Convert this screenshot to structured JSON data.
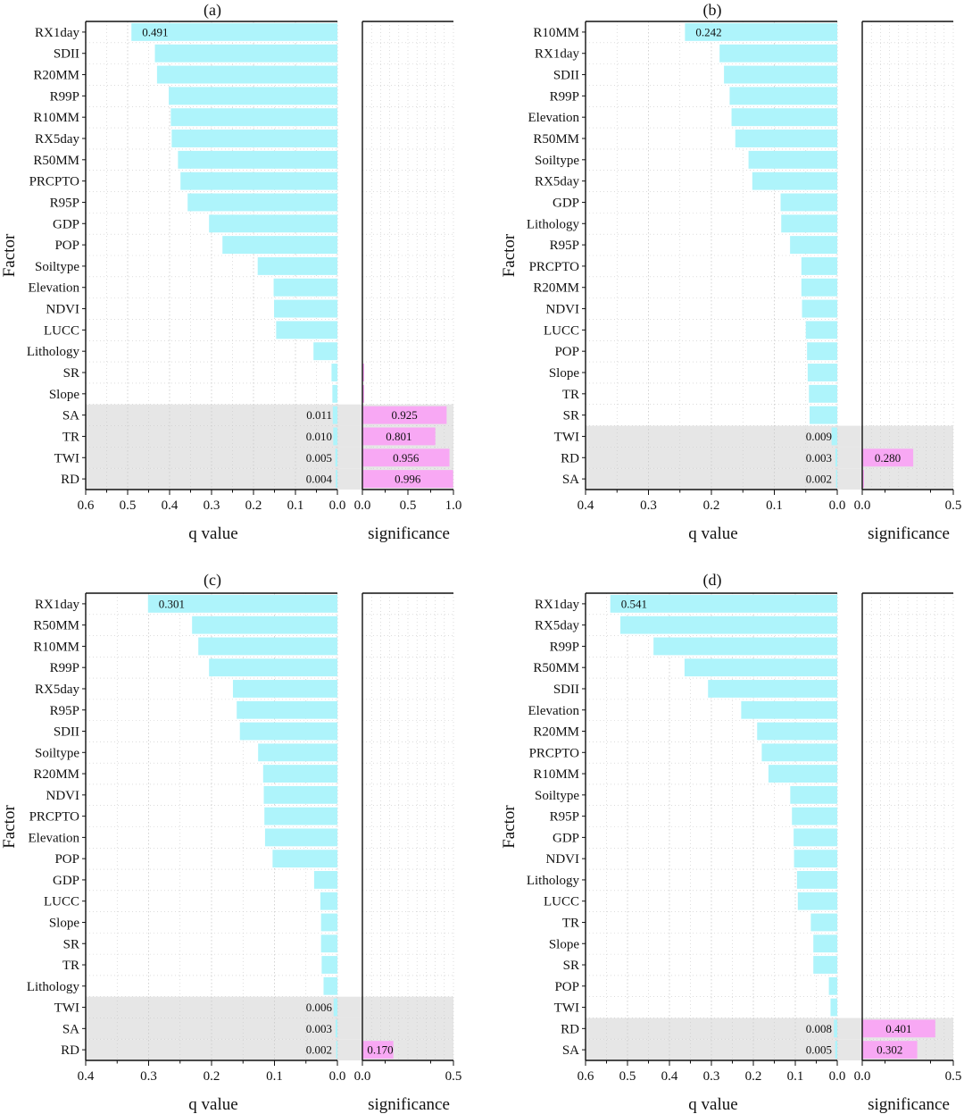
{
  "colors": {
    "bar": "#aef4fb",
    "sigBar": "#f8a8f4",
    "qLabel": "#e0218a",
    "sigLabel": "#2a9d2a",
    "shade": "#e6e6e6",
    "grid": "#c8c8c8"
  },
  "chart_data": [
    {
      "type": "bar",
      "title": "(a)",
      "ylabel": "Factor",
      "xlabel": "q value",
      "sig_xlabel": "significance",
      "xlim": [
        0.6,
        0.0
      ],
      "xticks": [
        0.6,
        0.5,
        0.4,
        0.3,
        0.2,
        0.1,
        0.0
      ],
      "sig_xlim": [
        0,
        1.0
      ],
      "sig_xticks": [
        0.0,
        0.5,
        1.0
      ],
      "categories": [
        "RX1day",
        "SDII",
        "R20MM",
        "R99P",
        "R10MM",
        "RX5day",
        "R50MM",
        "PRCPTO",
        "R95P",
        "GDP",
        "POP",
        "Soiltype",
        "Elevation",
        "NDVI",
        "LUCC",
        "Lithology",
        "SR",
        "Slope",
        "SA",
        "TR",
        "TWI",
        "RD"
      ],
      "q_values": [
        0.491,
        0.435,
        0.43,
        0.402,
        0.397,
        0.395,
        0.38,
        0.374,
        0.357,
        0.306,
        0.274,
        0.19,
        0.152,
        0.151,
        0.146,
        0.057,
        0.014,
        0.012,
        0.011,
        0.01,
        0.005,
        0.004
      ],
      "significance": [
        0,
        0,
        0,
        0,
        0,
        0,
        0,
        0,
        0,
        0,
        0,
        0,
        0,
        0,
        0,
        0,
        0.02,
        0.02,
        0.925,
        0.801,
        0.956,
        0.996
      ],
      "q_value_labels": {
        "RX1day": "0.491",
        "SA": "0.011",
        "TR": "0.010",
        "TWI": "0.005",
        "RD": "0.004"
      },
      "sig_value_labels": {
        "SA": "0.925",
        "TR": "0.801",
        "TWI": "0.956",
        "RD": "0.996"
      },
      "shaded": [
        "SA",
        "TR",
        "TWI",
        "RD"
      ]
    },
    {
      "type": "bar",
      "title": "(b)",
      "ylabel": "Factor",
      "xlabel": "q value",
      "sig_xlabel": "significance",
      "xlim": [
        0.4,
        0.0
      ],
      "xticks": [
        0.4,
        0.3,
        0.2,
        0.1,
        0.0
      ],
      "sig_xlim": [
        0,
        0.5
      ],
      "sig_xticks": [
        0.0,
        0.5
      ],
      "categories": [
        "R10MM",
        "RX1day",
        "SDII",
        "R99P",
        "Elevation",
        "R50MM",
        "Soiltype",
        "RX5day",
        "GDP",
        "Lithology",
        "R95P",
        "PRCPTO",
        "R20MM",
        "NDVI",
        "LUCC",
        "POP",
        "Slope",
        "TR",
        "SR",
        "TWI",
        "RD",
        "SA"
      ],
      "q_values": [
        0.242,
        0.187,
        0.18,
        0.171,
        0.168,
        0.162,
        0.141,
        0.135,
        0.09,
        0.089,
        0.075,
        0.057,
        0.057,
        0.056,
        0.05,
        0.048,
        0.047,
        0.045,
        0.044,
        0.009,
        0.003,
        0.002
      ],
      "significance": [
        0,
        0,
        0,
        0,
        0,
        0,
        0,
        0,
        0,
        0,
        0,
        0,
        0,
        0,
        0,
        0,
        0,
        0,
        0,
        0,
        0.28,
        0.003
      ],
      "q_value_labels": {
        "R10MM": "0.242",
        "TWI": "0.009",
        "RD": "0.003",
        "SA": "0.002"
      },
      "sig_value_labels": {
        "RD": "0.280"
      },
      "shaded": [
        "TWI",
        "RD",
        "SA"
      ]
    },
    {
      "type": "bar",
      "title": "(c)",
      "ylabel": "Factor",
      "xlabel": "q value",
      "sig_xlabel": "significance",
      "xlim": [
        0.4,
        0.0
      ],
      "xticks": [
        0.4,
        0.3,
        0.2,
        0.1,
        0.0
      ],
      "sig_xlim": [
        0,
        0.5
      ],
      "sig_xticks": [
        0.0,
        0.5
      ],
      "categories": [
        "RX1day",
        "R50MM",
        "R10MM",
        "R99P",
        "RX5day",
        "R95P",
        "SDII",
        "Soiltype",
        "R20MM",
        "NDVI",
        "PRCPTO",
        "Elevation",
        "POP",
        "GDP",
        "LUCC",
        "Slope",
        "SR",
        "TR",
        "Lithology",
        "TWI",
        "SA",
        "RD"
      ],
      "q_values": [
        0.301,
        0.231,
        0.221,
        0.204,
        0.166,
        0.16,
        0.155,
        0.126,
        0.118,
        0.117,
        0.116,
        0.115,
        0.103,
        0.037,
        0.027,
        0.026,
        0.026,
        0.025,
        0.022,
        0.006,
        0.003,
        0.002
      ],
      "significance": [
        0,
        0,
        0,
        0,
        0,
        0,
        0,
        0,
        0,
        0,
        0,
        0,
        0,
        0,
        0,
        0,
        0,
        0,
        0,
        0,
        0,
        0.17
      ],
      "q_value_labels": {
        "RX1day": "0.301",
        "TWI": "0.006",
        "SA": "0.003",
        "RD": "0.002"
      },
      "sig_value_labels": {
        "RD": "0.170"
      },
      "shaded": [
        "TWI",
        "SA",
        "RD"
      ]
    },
    {
      "type": "bar",
      "title": "(d)",
      "ylabel": "Factor",
      "xlabel": "q value",
      "sig_xlabel": "significance",
      "xlim": [
        0.6,
        0.0
      ],
      "xticks": [
        0.6,
        0.5,
        0.4,
        0.3,
        0.2,
        0.1,
        0.0
      ],
      "sig_xlim": [
        0,
        0.5
      ],
      "sig_xticks": [
        0.0,
        0.5
      ],
      "categories": [
        "RX1day",
        "RX5day",
        "R99P",
        "R50MM",
        "SDII",
        "Elevation",
        "R20MM",
        "PRCPTO",
        "R10MM",
        "Soiltype",
        "R95P",
        "GDP",
        "NDVI",
        "Lithology",
        "LUCC",
        "TR",
        "Slope",
        "SR",
        "POP",
        "TWI",
        "RD",
        "SA"
      ],
      "q_values": [
        0.541,
        0.517,
        0.438,
        0.364,
        0.308,
        0.229,
        0.191,
        0.18,
        0.164,
        0.112,
        0.108,
        0.104,
        0.103,
        0.096,
        0.094,
        0.063,
        0.057,
        0.057,
        0.02,
        0.016,
        0.008,
        0.005
      ],
      "significance": [
        0,
        0,
        0,
        0,
        0,
        0,
        0,
        0,
        0,
        0,
        0,
        0,
        0,
        0,
        0,
        0,
        0,
        0,
        0,
        0,
        0.401,
        0.302
      ],
      "q_value_labels": {
        "RX1day": "0.541",
        "RD": "0.008",
        "SA": "0.005"
      },
      "sig_value_labels": {
        "RD": "0.401",
        "SA": "0.302"
      },
      "shaded": [
        "RD",
        "SA"
      ]
    }
  ]
}
